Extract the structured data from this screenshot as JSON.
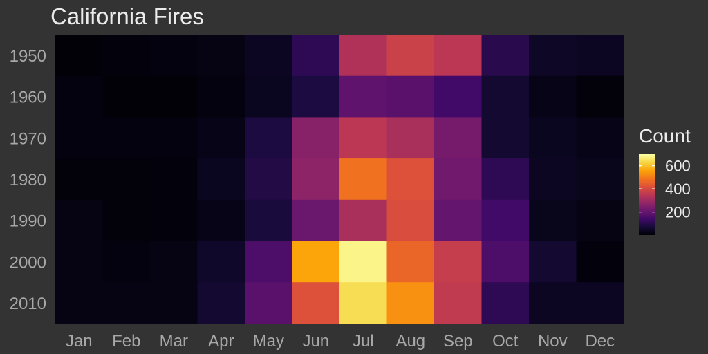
{
  "chart_data": {
    "type": "heatmap",
    "title": "California Fires",
    "xlabel": "",
    "ylabel": "",
    "x_categories": [
      "Jan",
      "Feb",
      "Mar",
      "Apr",
      "May",
      "Jun",
      "Jul",
      "Aug",
      "Sep",
      "Oct",
      "Nov",
      "Dec"
    ],
    "y_categories": [
      "1950",
      "1960",
      "1970",
      "1980",
      "1990",
      "2000",
      "2010"
    ],
    "values": [
      [
        5,
        10,
        15,
        20,
        40,
        110,
        330,
        380,
        350,
        100,
        45,
        40
      ],
      [
        15,
        5,
        5,
        15,
        35,
        80,
        190,
        180,
        140,
        60,
        25,
        8
      ],
      [
        15,
        15,
        15,
        25,
        80,
        260,
        350,
        320,
        230,
        60,
        35,
        25
      ],
      [
        8,
        8,
        10,
        35,
        90,
        270,
        480,
        420,
        220,
        110,
        40,
        30
      ],
      [
        20,
        8,
        10,
        25,
        75,
        210,
        320,
        410,
        200,
        140,
        30,
        20
      ],
      [
        20,
        15,
        20,
        50,
        160,
        560,
        680,
        460,
        370,
        160,
        60,
        10
      ],
      [
        20,
        20,
        20,
        60,
        180,
        420,
        640,
        530,
        360,
        110,
        40,
        40
      ]
    ],
    "legend": {
      "title": "Count",
      "ticks": [
        200,
        400,
        600
      ],
      "range": [
        0,
        700
      ],
      "placement": "right"
    },
    "colorscale": "inferno",
    "grid": false
  }
}
